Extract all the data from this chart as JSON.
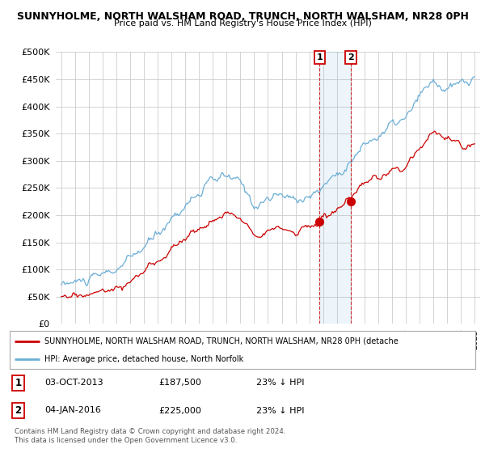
{
  "title": "SUNNYHOLME, NORTH WALSHAM ROAD, TRUNCH, NORTH WALSHAM, NR28 0PH",
  "subtitle": "Price paid vs. HM Land Registry's House Price Index (HPI)",
  "ytick_values": [
    0,
    50000,
    100000,
    150000,
    200000,
    250000,
    300000,
    350000,
    400000,
    450000,
    500000
  ],
  "xstart_year": 1995,
  "xend_year": 2025,
  "sale1_date": 2013.75,
  "sale1_price": 187500,
  "sale2_date": 2016.01,
  "sale2_price": 225000,
  "sale1_date_str": "03-OCT-2013",
  "sale1_price_str": "£187,500",
  "sale1_hpi": "23% ↓ HPI",
  "sale2_date_str": "04-JAN-2016",
  "sale2_price_str": "£225,000",
  "sale2_hpi": "23% ↓ HPI",
  "hpi_color": "#6baed6",
  "price_color": "#cc0000",
  "legend1_text": "SUNNYHOLME, NORTH WALSHAM ROAD, TRUNCH, NORTH WALSHAM, NR28 0PH (detache",
  "legend2_text": "HPI: Average price, detached house, North Norfolk",
  "footer": "Contains HM Land Registry data © Crown copyright and database right 2024.\nThis data is licensed under the Open Government Licence v3.0.",
  "background_color": "#ffffff",
  "plot_bg_color": "#ffffff",
  "grid_color": "#cccccc"
}
